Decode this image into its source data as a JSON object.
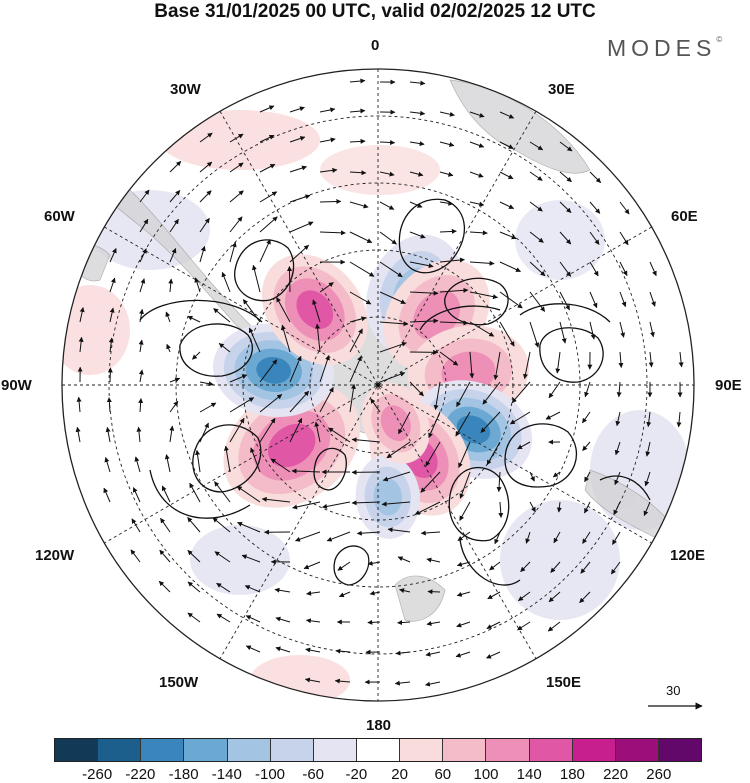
{
  "title": "Base 31/01/2025 00 UTC, valid 02/02/2025 12 UTC",
  "brand": "MODES",
  "brand_mark": "©",
  "longitude_labels": {
    "lon_0": "0",
    "lon_30e": "30E",
    "lon_60e": "60E",
    "lon_90e": "90E",
    "lon_120e": "120E",
    "lon_150e": "150E",
    "lon_180": "180",
    "lon_150w": "150W",
    "lon_120w": "120W",
    "lon_90w": "90W",
    "lon_60w": "60W",
    "lon_30w": "30W"
  },
  "reference_vector_label": "30",
  "colorbar": {
    "colors": [
      "#123a57",
      "#1d5f8c",
      "#3a86bc",
      "#6ba8d2",
      "#a3c4e3",
      "#c7d3ea",
      "#e4e4f2",
      "#ffffff",
      "#f9dddd",
      "#f4bcc8",
      "#ee8fb8",
      "#e057a6",
      "#c81f8f",
      "#9c0f7b",
      "#62086a"
    ],
    "tick_labels": [
      "-260",
      "-220",
      "-180",
      "-140",
      "-100",
      "-60",
      "-20",
      "20",
      "60",
      "100",
      "140",
      "180",
      "220",
      "260"
    ]
  },
  "anomaly_cells": [
    {
      "lon": 22,
      "lat": -62,
      "value": -140,
      "size": "medium"
    },
    {
      "lon": 40,
      "lat": -64,
      "value": 140,
      "size": "medium"
    },
    {
      "lon": 82,
      "lat": -64,
      "value": 140,
      "size": "medium"
    },
    {
      "lon": 115,
      "lat": -60,
      "value": -200,
      "size": "medium"
    },
    {
      "lon": 150,
      "lat": -66,
      "value": 180,
      "size": "medium"
    },
    {
      "lon": 175,
      "lat": -58,
      "value": -140,
      "size": "small"
    },
    {
      "lon": 155,
      "lat": -78,
      "value": 140,
      "size": "small"
    },
    {
      "lon": -125,
      "lat": -60,
      "value": 180,
      "size": "large"
    },
    {
      "lon": -82,
      "lat": -60,
      "value": -200,
      "size": "medium"
    },
    {
      "lon": -40,
      "lat": -62,
      "value": 180,
      "size": "medium"
    }
  ]
}
